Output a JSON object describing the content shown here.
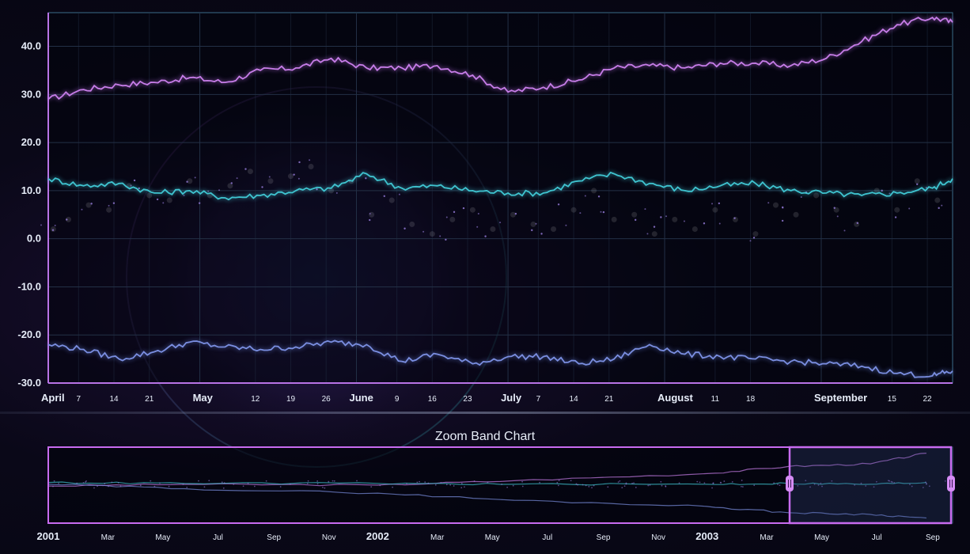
{
  "zoom_title": "Zoom Band Chart",
  "colors": {
    "series_top": "#c77de8",
    "series_mid": "#3fc4d0",
    "series_bottom": "#7a8ee0",
    "scatter": "#9a7fe0",
    "axis_left": "#b873e6",
    "axis_frame": "#5fb0d8",
    "band_highlight": "#c86bf0",
    "grid": "#233046"
  },
  "main_x_labels": [
    {
      "text": "April",
      "major": true
    },
    {
      "text": "7",
      "major": false
    },
    {
      "text": "14",
      "major": false
    },
    {
      "text": "21",
      "major": false
    },
    {
      "text": "May",
      "major": true
    },
    {
      "text": "12",
      "major": false
    },
    {
      "text": "19",
      "major": false
    },
    {
      "text": "26",
      "major": false
    },
    {
      "text": "June",
      "major": true
    },
    {
      "text": "9",
      "major": false
    },
    {
      "text": "16",
      "major": false
    },
    {
      "text": "23",
      "major": false
    },
    {
      "text": "July",
      "major": true
    },
    {
      "text": "7",
      "major": false
    },
    {
      "text": "14",
      "major": false
    },
    {
      "text": "21",
      "major": false
    },
    {
      "text": "August",
      "major": true
    },
    {
      "text": "11",
      "major": false
    },
    {
      "text": "18",
      "major": false
    },
    {
      "text": "September",
      "major": true
    },
    {
      "text": "15",
      "major": false
    },
    {
      "text": "22",
      "major": false
    }
  ],
  "zoom_x_labels": [
    {
      "text": "2001",
      "major": true
    },
    {
      "text": "Mar",
      "major": false
    },
    {
      "text": "May",
      "major": false
    },
    {
      "text": "Jul",
      "major": false
    },
    {
      "text": "Sep",
      "major": false
    },
    {
      "text": "Nov",
      "major": false
    },
    {
      "text": "2002",
      "major": true
    },
    {
      "text": "Mar",
      "major": false
    },
    {
      "text": "May",
      "major": false
    },
    {
      "text": "Jul",
      "major": false
    },
    {
      "text": "Sep",
      "major": false
    },
    {
      "text": "Nov",
      "major": false
    },
    {
      "text": "2003",
      "major": true
    },
    {
      "text": "Mar",
      "major": false
    },
    {
      "text": "May",
      "major": false
    },
    {
      "text": "Jul",
      "major": false
    },
    {
      "text": "Sep",
      "major": false
    }
  ],
  "chart_data": [
    {
      "type": "line",
      "title": "",
      "xlabel": "",
      "ylabel": "",
      "x_range": [
        "2003-04-01",
        "2003-09-27"
      ],
      "ylim": [
        -30,
        47
      ],
      "y_ticks": [
        "40.0",
        "30.0",
        "20.0",
        "10.0",
        "0.0",
        "-10.0",
        "-20.0",
        "-30.0"
      ],
      "grid": true,
      "series": [
        {
          "key": "top",
          "x": [
            "2003-04-01",
            "2003-04-08",
            "2003-04-15",
            "2003-04-22",
            "2003-04-29",
            "2003-05-06",
            "2003-05-13",
            "2003-05-20",
            "2003-05-27",
            "2003-06-03",
            "2003-06-10",
            "2003-06-17",
            "2003-06-24",
            "2003-07-01",
            "2003-07-08",
            "2003-07-15",
            "2003-07-22",
            "2003-07-29",
            "2003-08-05",
            "2003-08-12",
            "2003-08-19",
            "2003-08-26",
            "2003-09-02",
            "2003-09-09",
            "2003-09-16",
            "2003-09-23",
            "2003-09-27"
          ],
          "values": [
            29.0,
            31.0,
            32.0,
            32.5,
            33.5,
            32.5,
            35.0,
            35.5,
            37.5,
            35.5,
            35.5,
            36.0,
            34.0,
            30.5,
            31.5,
            33.0,
            35.5,
            36.0,
            35.5,
            36.5,
            36.5,
            36.0,
            37.5,
            41.0,
            44.5,
            46.0,
            45.0
          ]
        },
        {
          "key": "mid",
          "x": [
            "2003-04-01",
            "2003-04-08",
            "2003-04-15",
            "2003-04-22",
            "2003-04-29",
            "2003-05-06",
            "2003-05-13",
            "2003-05-20",
            "2003-05-27",
            "2003-06-03",
            "2003-06-10",
            "2003-06-17",
            "2003-06-24",
            "2003-07-01",
            "2003-07-08",
            "2003-07-15",
            "2003-07-22",
            "2003-07-29",
            "2003-08-05",
            "2003-08-12",
            "2003-08-19",
            "2003-08-26",
            "2003-09-02",
            "2003-09-09",
            "2003-09-16",
            "2003-09-23",
            "2003-09-27"
          ],
          "values": [
            12.5,
            11.0,
            11.5,
            9.5,
            10.0,
            8.5,
            9.0,
            10.0,
            10.5,
            13.5,
            10.5,
            11.0,
            10.0,
            9.5,
            9.5,
            12.0,
            13.5,
            11.5,
            10.0,
            11.0,
            11.5,
            10.0,
            9.5,
            9.0,
            9.5,
            10.5,
            12.5
          ]
        },
        {
          "key": "bottom",
          "x": [
            "2003-04-01",
            "2003-04-08",
            "2003-04-15",
            "2003-04-22",
            "2003-04-29",
            "2003-05-06",
            "2003-05-13",
            "2003-05-20",
            "2003-05-27",
            "2003-06-03",
            "2003-06-10",
            "2003-06-17",
            "2003-06-24",
            "2003-07-01",
            "2003-07-08",
            "2003-07-15",
            "2003-07-22",
            "2003-07-29",
            "2003-08-05",
            "2003-08-12",
            "2003-08-19",
            "2003-08-26",
            "2003-09-02",
            "2003-09-09",
            "2003-09-16",
            "2003-09-23",
            "2003-09-27"
          ],
          "values": [
            -22.0,
            -23.0,
            -25.0,
            -23.5,
            -21.5,
            -22.5,
            -23.0,
            -22.5,
            -21.5,
            -22.0,
            -25.5,
            -24.0,
            -26.0,
            -24.5,
            -24.5,
            -26.0,
            -25.0,
            -22.0,
            -24.0,
            -24.5,
            -25.0,
            -25.5,
            -26.0,
            -26.5,
            -28.0,
            -28.5,
            -27.5
          ]
        },
        {
          "key": "scatter",
          "type": "scatter",
          "x": [
            "2003-04-02",
            "2003-04-05",
            "2003-04-09",
            "2003-04-13",
            "2003-04-17",
            "2003-04-21",
            "2003-04-25",
            "2003-04-29",
            "2003-05-03",
            "2003-05-07",
            "2003-05-11",
            "2003-05-15",
            "2003-05-19",
            "2003-05-23",
            "2003-05-27",
            "2003-05-31",
            "2003-06-04",
            "2003-06-08",
            "2003-06-12",
            "2003-06-16",
            "2003-06-20",
            "2003-06-24",
            "2003-06-28",
            "2003-07-02",
            "2003-07-06",
            "2003-07-10",
            "2003-07-14",
            "2003-07-18",
            "2003-07-22",
            "2003-07-26",
            "2003-07-30",
            "2003-08-03",
            "2003-08-07",
            "2003-08-11",
            "2003-08-15",
            "2003-08-19",
            "2003-08-23",
            "2003-08-27",
            "2003-08-31",
            "2003-09-04",
            "2003-09-08",
            "2003-09-12",
            "2003-09-16",
            "2003-09-20",
            "2003-09-24"
          ],
          "values": [
            2,
            4,
            7,
            6,
            11,
            9,
            8,
            12,
            9,
            11,
            14,
            12,
            13,
            15,
            10,
            12,
            5,
            8,
            3,
            1,
            4,
            6,
            2,
            5,
            3,
            2,
            6,
            10,
            4,
            5,
            1,
            4,
            2,
            6,
            4,
            1,
            7,
            5,
            9,
            6,
            3,
            10,
            6,
            12,
            8
          ]
        }
      ]
    },
    {
      "type": "line",
      "title": "Zoom Band Chart",
      "x_range": [
        "2001-01-01",
        "2003-09-30"
      ],
      "selected_range": [
        "2003-04-01",
        "2003-09-27"
      ],
      "series": [
        {
          "key": "top",
          "x": [
            "2001-01",
            "2001-06",
            "2002-01",
            "2002-06",
            "2003-01",
            "2003-04",
            "2003-07",
            "2003-09"
          ],
          "values": [
            8,
            10,
            9,
            14,
            22,
            30,
            33,
            45
          ]
        },
        {
          "key": "mid",
          "x": [
            "2001-01",
            "2001-06",
            "2002-01",
            "2002-06",
            "2003-01",
            "2003-04",
            "2003-07",
            "2003-09"
          ],
          "values": [
            12,
            11,
            11,
            10,
            10,
            11,
            10,
            12
          ]
        },
        {
          "key": "bottom",
          "x": [
            "2001-01",
            "2001-06",
            "2002-01",
            "2002-06",
            "2003-01",
            "2003-04",
            "2003-07",
            "2003-09"
          ],
          "values": [
            10,
            5,
            0,
            -8,
            -15,
            -22,
            -24,
            -28
          ]
        }
      ]
    }
  ]
}
